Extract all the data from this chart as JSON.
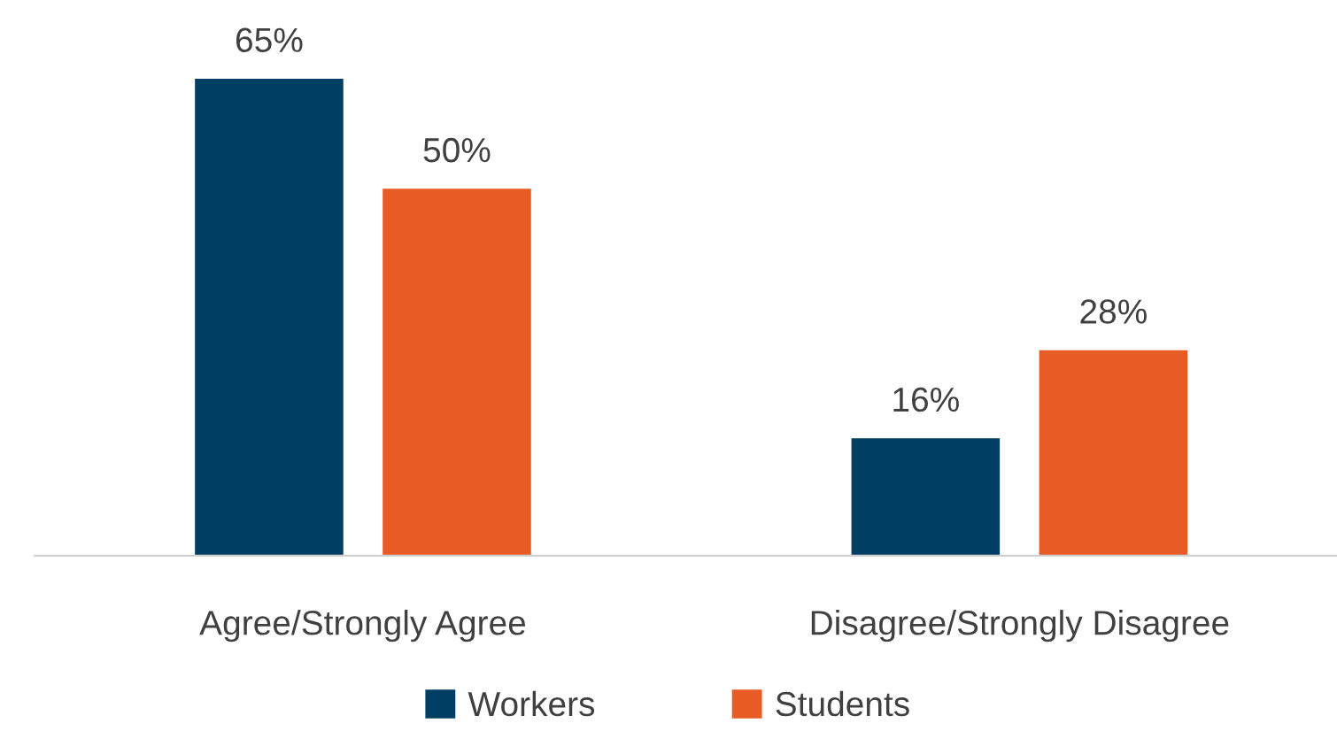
{
  "chart_data": {
    "type": "bar",
    "categories": [
      "Agree/Strongly Agree",
      "Disagree/Strongly Disagree"
    ],
    "series": [
      {
        "name": "Workers",
        "color": "#003f63",
        "values": [
          65,
          16
        ],
        "value_labels": [
          "65%",
          "16%"
        ]
      },
      {
        "name": "Students",
        "color": "#e85b25",
        "values": [
          50,
          28
        ],
        "value_labels": [
          "50%",
          "28%"
        ]
      }
    ],
    "legend": "bottom",
    "grid": false
  }
}
